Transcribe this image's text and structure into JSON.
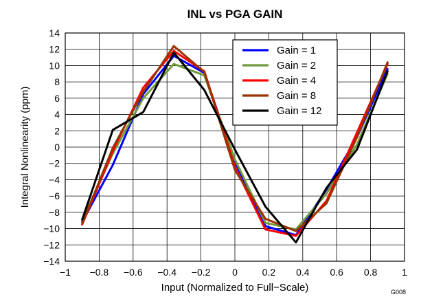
{
  "chart_data": {
    "type": "line",
    "title": "INL vs PGA GAIN",
    "xlabel": "Input (Normalized to Full−Scale)",
    "ylabel": "Integral Nonlinearity (ppm)",
    "xlim": [
      -1,
      1
    ],
    "ylim": [
      -14,
      14
    ],
    "grid": true,
    "legend_position": "top-right",
    "figure_code": "G008",
    "x_ticks": [
      -1,
      -0.8,
      -0.6,
      -0.4,
      -0.2,
      0,
      0.2,
      0.4,
      0.6,
      0.8,
      1
    ],
    "x_tick_labels": [
      "−1",
      "−0.8",
      "−0.6",
      "−0.4",
      "−0.2",
      "0",
      "0.2",
      "0.4",
      "0.6",
      "0.8",
      "1"
    ],
    "y_ticks": [
      -14,
      -12,
      -10,
      -8,
      -6,
      -4,
      -2,
      0,
      2,
      4,
      6,
      8,
      10,
      12,
      14
    ],
    "y_tick_labels": [
      "−14",
      "−12",
      "−10",
      "−8",
      "−6",
      "−4",
      "−2",
      "0",
      "2",
      "4",
      "6",
      "8",
      "10",
      "12",
      "14"
    ],
    "series": [
      {
        "name": "Gain = 1",
        "color": "#0000FF",
        "x": [
          -0.9,
          -0.72,
          -0.54,
          -0.36,
          -0.18,
          0,
          0.18,
          0.36,
          0.54,
          0.72,
          0.9
        ],
        "y": [
          -9.2,
          -2.2,
          6.5,
          11.2,
          9.1,
          -1.8,
          -9.7,
          -10.8,
          -5.2,
          1.2,
          9.6
        ]
      },
      {
        "name": "Gain = 2",
        "color": "#6E9A3C",
        "x": [
          -0.9,
          -0.72,
          -0.54,
          -0.36,
          -0.18,
          0,
          0.18,
          0.36,
          0.54,
          0.72,
          0.9
        ],
        "y": [
          -9.0,
          -0.8,
          6.0,
          10.2,
          8.8,
          -1.5,
          -9.3,
          -10.1,
          -5.7,
          0.3,
          9.0
        ]
      },
      {
        "name": "Gain = 4",
        "color": "#FF0000",
        "x": [
          -0.9,
          -0.72,
          -0.54,
          -0.36,
          -0.18,
          0,
          0.18,
          0.36,
          0.54,
          0.72,
          0.9
        ],
        "y": [
          -9.5,
          -0.5,
          7.3,
          11.8,
          9.3,
          -2.4,
          -10.1,
          -10.9,
          -6.6,
          1.8,
          10.2
        ]
      },
      {
        "name": "Gain = 8",
        "color": "#993300",
        "x": [
          -0.9,
          -0.72,
          -0.54,
          -0.36,
          -0.18,
          0,
          0.18,
          0.36,
          0.54,
          0.72,
          0.9
        ],
        "y": [
          -9.4,
          -0.1,
          6.8,
          12.4,
          9.2,
          -2.8,
          -8.8,
          -10.3,
          -6.9,
          1.2,
          10.4
        ]
      },
      {
        "name": "Gain = 12",
        "color": "#000000",
        "x": [
          -0.9,
          -0.72,
          -0.54,
          -0.36,
          -0.18,
          0,
          0.18,
          0.36,
          0.54,
          0.72,
          0.9
        ],
        "y": [
          -8.9,
          2.1,
          4.3,
          11.6,
          7.0,
          -0.3,
          -7.3,
          -11.7,
          -5.0,
          -0.3,
          9.3
        ]
      }
    ]
  }
}
